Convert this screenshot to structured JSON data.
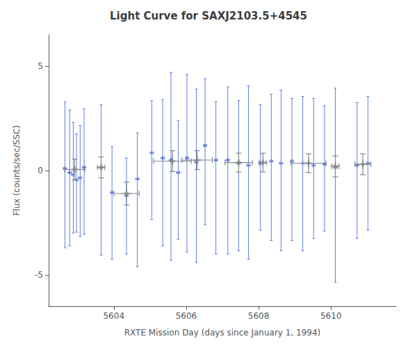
{
  "chart_data": {
    "type": "scatter",
    "title": "Light Curve for SAXJ2103.5+4545",
    "xlabel": "RXTE Mission Day (days since January 1, 1994)",
    "ylabel": "Flux (counts/sec/SSC)",
    "xlim": [
      5602.2,
      5611.8
    ],
    "ylim": [
      -6.5,
      6.5
    ],
    "xticks": [
      5604,
      5606,
      5608,
      5610
    ],
    "yticks": [
      -5,
      0,
      5
    ],
    "grid": false,
    "series": [
      {
        "marker": "plus",
        "x": [
          5602.65,
          5602.78,
          5602.88,
          5602.97,
          5603.07,
          5603.18,
          5603.65,
          5603.95,
          5604.35,
          5604.65,
          5605.05,
          5605.35,
          5605.58,
          5605.78,
          5606.02,
          5606.28,
          5606.52,
          5606.82,
          5607.15,
          5607.45,
          5607.72,
          5608.05,
          5608.35,
          5608.62,
          5608.92,
          5609.22,
          5609.52,
          5609.82,
          5610.12,
          5610.72,
          5611.02
        ],
        "values": [
          0.1,
          -0.1,
          -0.2,
          -0.45,
          -0.35,
          0.15,
          0.15,
          -1.05,
          -1.2,
          -0.4,
          0.85,
          0.6,
          0.5,
          -0.1,
          0.6,
          0.4,
          1.2,
          0.5,
          0.5,
          0.35,
          0.25,
          0.35,
          0.45,
          0.35,
          0.45,
          0.35,
          0.25,
          0.3,
          0.15,
          0.25,
          0.35
        ],
        "xerr": [
          0.04,
          0.04,
          0.04,
          0.04,
          0.04,
          0.04,
          0.04,
          0.04,
          0.04,
          0.04,
          0.04,
          0.04,
          0.04,
          0.04,
          0.04,
          0.04,
          0.04,
          0.04,
          0.04,
          0.04,
          0.04,
          0.04,
          0.04,
          0.04,
          0.04,
          0.04,
          0.04,
          0.04,
          0.04,
          0.04,
          0.04
        ],
        "yerr_lo": [
          3.8,
          3.5,
          2.8,
          2.5,
          2.8,
          3.2,
          4.2,
          3.2,
          2.8,
          4.2,
          3.2,
          4.2,
          4.8,
          3.2,
          4.5,
          4.8,
          3.8,
          4.5,
          4.5,
          4.2,
          4.5,
          3.2,
          3.8,
          4.2,
          3.8,
          4.2,
          3.5,
          3.2,
          5.5,
          3.5,
          3.2
        ],
        "yerr_hi": [
          3.2,
          3.0,
          2.5,
          2.2,
          2.5,
          2.8,
          3.0,
          2.2,
          1.8,
          2.2,
          2.5,
          2.8,
          4.2,
          2.5,
          4.0,
          3.5,
          3.2,
          2.8,
          3.5,
          3.0,
          3.8,
          2.8,
          3.2,
          3.5,
          3.0,
          3.2,
          3.2,
          2.8,
          3.8,
          3.0,
          3.2
        ]
      },
      {
        "marker": "star",
        "color": "#888888",
        "x": [
          5602.92,
          5603.65,
          5604.35,
          5605.62,
          5606.3,
          5607.45,
          5608.12,
          5609.38,
          5610.12,
          5610.88
        ],
        "values": [
          0.05,
          0.15,
          -1.1,
          0.45,
          0.5,
          0.38,
          0.38,
          0.35,
          0.2,
          0.3
        ],
        "xerr": [
          0.28,
          0.1,
          0.35,
          0.52,
          0.42,
          0.38,
          0.1,
          0.48,
          0.1,
          0.22
        ],
        "yerr": [
          0.5,
          0.5,
          0.55,
          0.5,
          0.45,
          0.45,
          0.45,
          0.45,
          0.5,
          0.5
        ]
      }
    ]
  }
}
